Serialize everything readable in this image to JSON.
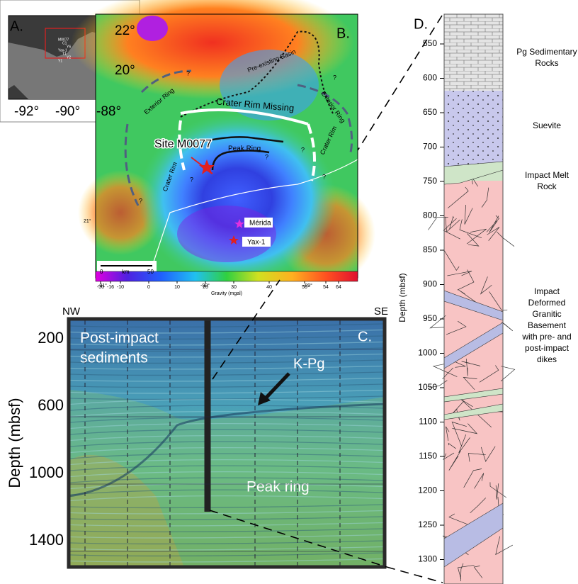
{
  "panel_a": {
    "label": "A.",
    "lat_ticks": [
      "22°",
      "20°"
    ],
    "lon_ticks": [
      "-92°",
      "-90°",
      "-88°"
    ],
    "sites": [
      "M0077",
      "C1",
      "Y6",
      "Yax-1",
      "T1",
      "Y2",
      "Y1"
    ]
  },
  "panel_b": {
    "label": "B.",
    "site": "Site M0077",
    "peak_ring": "Peak Ring",
    "crater_rim_missing": "Crater Rim Missing",
    "pre_existing_basin": "Pre-existing Basin",
    "exterior_ring": "Exterior Ring",
    "crater_rim": "Crater Rim",
    "query": "?",
    "merida": "Mérida",
    "yax1": "Yax-1",
    "lat_tick": "21°",
    "lon_ticks": [
      "-91°",
      "-90°",
      "-89°"
    ],
    "scale": {
      "start": "0",
      "unit": "km",
      "end": "50"
    },
    "colorbar": {
      "ticks": [
        -30,
        -16,
        -10,
        0,
        10,
        20,
        30,
        40,
        50,
        54,
        64
      ],
      "label": "Gravity (mgal)"
    }
  },
  "panel_c": {
    "label": "C.",
    "left": "NW",
    "right": "SE",
    "axis_label": "Depth (mbsf)",
    "yticks": [
      200,
      600,
      1000,
      1400
    ],
    "sediments": [
      "Post-impact",
      "sediments"
    ],
    "kpg": "K-Pg",
    "peak_ring": "Peak ring"
  },
  "panel_d": {
    "label": "D.",
    "axis_label": "Depth (mbsf)",
    "yticks": [
      550,
      600,
      650,
      700,
      750,
      800,
      850,
      900,
      950,
      1000,
      1050,
      1100,
      1150,
      1200,
      1250,
      1300
    ],
    "units": [
      {
        "lines": [
          "Pg Sedimentary",
          "Rocks"
        ]
      },
      {
        "lines": [
          "Suevite"
        ]
      },
      {
        "lines": [
          "Impact Melt",
          "Rock"
        ]
      },
      {
        "lines": [
          "Impact",
          "Deformed",
          "Granitic",
          "Basement",
          "with pre- and",
          "post-impact",
          "dikes"
        ]
      }
    ]
  }
}
